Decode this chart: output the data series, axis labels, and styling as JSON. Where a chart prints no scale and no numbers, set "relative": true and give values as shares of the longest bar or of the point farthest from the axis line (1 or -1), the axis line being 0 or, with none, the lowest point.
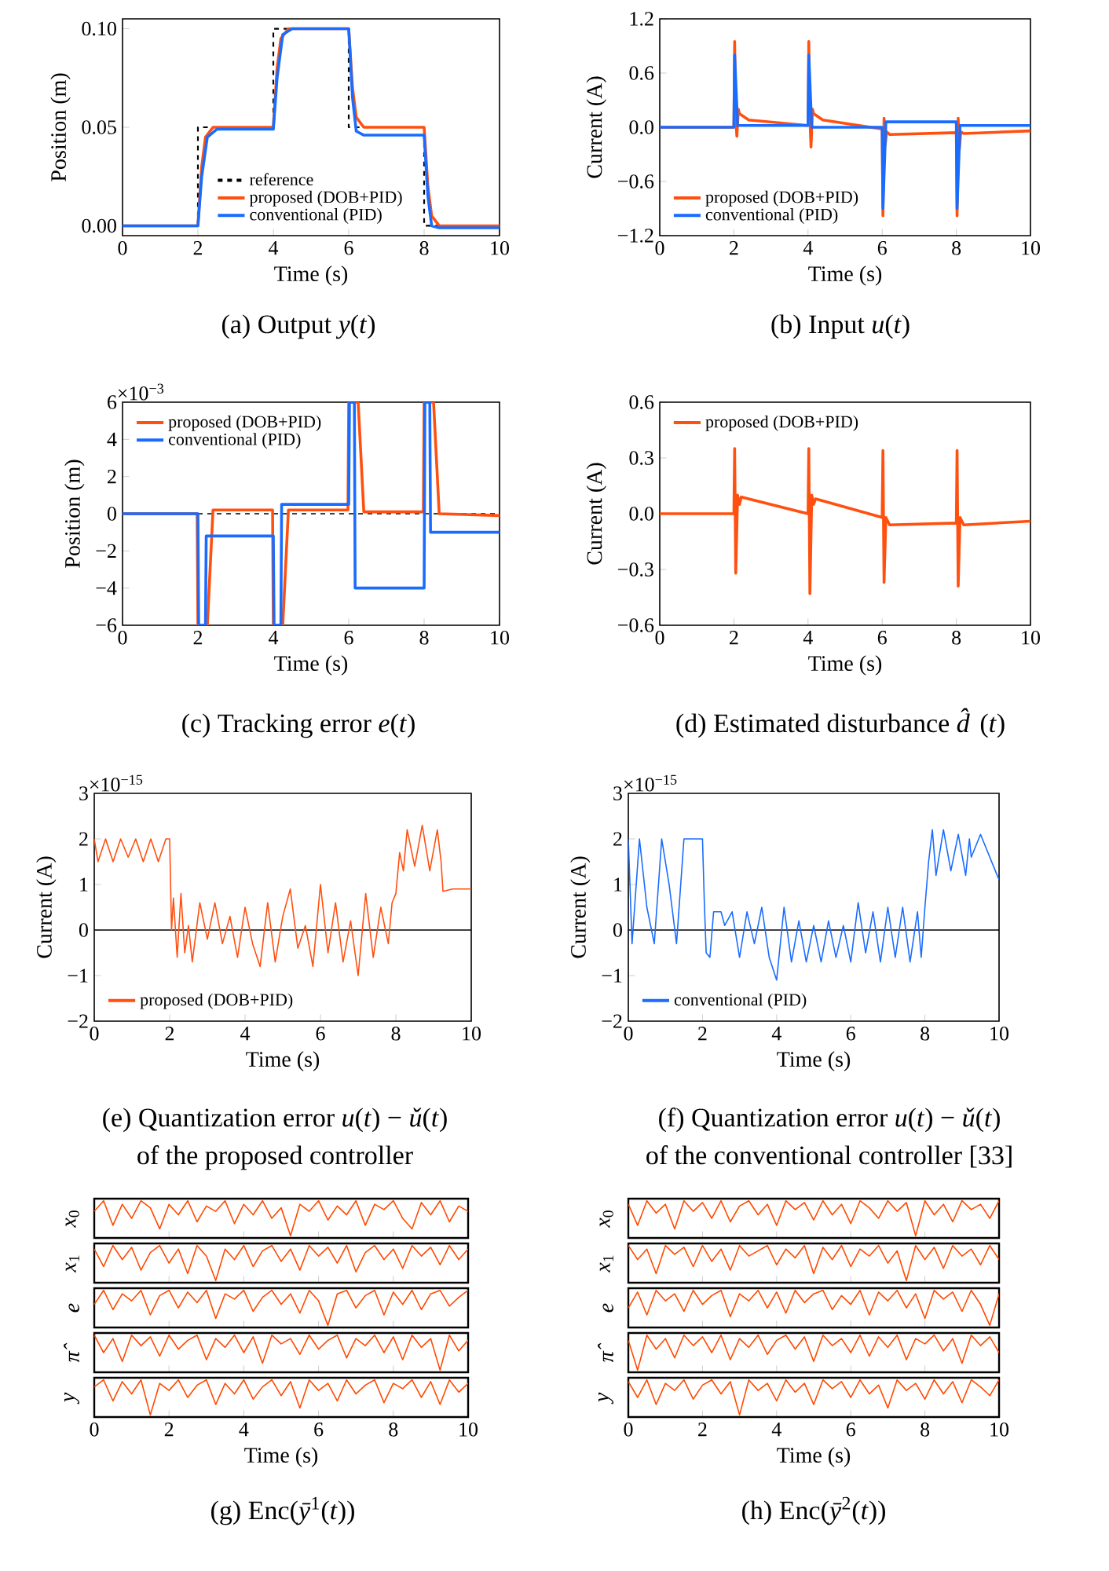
{
  "chart_data": [
    {
      "type": "line",
      "title": "(a) Output *y*(*t*)",
      "xlabel": "Time (s)",
      "ylabel": "Position (m)",
      "xlim": [
        0,
        10
      ],
      "ylim": [
        -0.005,
        0.105
      ],
      "xticks": [
        0,
        2,
        4,
        6,
        8,
        10
      ],
      "yticks": [
        {
          "value": 0,
          "label": "0.00"
        },
        {
          "value": 0.05,
          "label": "0.05"
        },
        {
          "value": 0.1,
          "label": "0.10"
        }
      ],
      "legend": "bottom",
      "series": [
        {
          "name": "reference",
          "color": "#000000",
          "line_style": "dashed",
          "x": [
            0,
            2,
            2,
            4,
            4,
            6,
            6,
            8,
            8,
            10
          ],
          "values": [
            0,
            0,
            0.05,
            0.05,
            0.1,
            0.1,
            0.05,
            0.05,
            0,
            0
          ]
        },
        {
          "name": "proposed (DOB+PID)",
          "color": "#ff5010",
          "x": [
            0,
            2,
            2.1,
            2.2,
            2.4,
            4,
            4.1,
            4.2,
            4.4,
            6,
            6.1,
            6.2,
            6.4,
            8,
            8.1,
            8.2,
            8.4,
            10
          ],
          "values": [
            0,
            0,
            0.03,
            0.045,
            0.05,
            0.05,
            0.08,
            0.095,
            0.1,
            0.1,
            0.07,
            0.055,
            0.05,
            0.05,
            0.02,
            0.005,
            0,
            0
          ]
        },
        {
          "name": "conventional (PID)",
          "color": "#1a6cff",
          "x": [
            0,
            2,
            2.1,
            2.25,
            2.5,
            4,
            4.1,
            4.25,
            4.5,
            6,
            6.1,
            6.2,
            6.4,
            8,
            8.1,
            8.2,
            8.4,
            10
          ],
          "values": [
            0,
            0,
            0.025,
            0.045,
            0.049,
            0.049,
            0.075,
            0.097,
            0.1,
            0.1,
            0.065,
            0.048,
            0.046,
            0.046,
            0.015,
            0.0,
            -0.001,
            -0.001
          ]
        }
      ]
    },
    {
      "type": "line",
      "title": "(b) Input *u*(*t*)",
      "xlabel": "Time (s)",
      "ylabel": "Current (A)",
      "xlim": [
        0,
        10
      ],
      "ylim": [
        -1.2,
        1.2
      ],
      "xticks": [
        0,
        2,
        4,
        6,
        8,
        10
      ],
      "yticks": [
        {
          "value": -1.2,
          "label": "−1.2"
        },
        {
          "value": -0.6,
          "label": "−0.6"
        },
        {
          "value": 0,
          "label": "0.0"
        },
        {
          "value": 0.6,
          "label": "0.6"
        },
        {
          "value": 1.2,
          "label": "1.2"
        }
      ],
      "legend": "bottom left",
      "series": [
        {
          "name": "proposed (DOB+PID)",
          "color": "#ff5010",
          "x": [
            0,
            2,
            2.02,
            2.05,
            2.08,
            2.12,
            2.15,
            2.4,
            4,
            4.02,
            4.05,
            4.08,
            4.12,
            4.15,
            4.4,
            6,
            6.02,
            6.05,
            6.08,
            6.12,
            6.2,
            8,
            8.02,
            8.05,
            8.08,
            8.12,
            8.2,
            10
          ],
          "values": [
            0,
            0,
            0.95,
            0.1,
            -0.1,
            0.2,
            0.15,
            0.08,
            0.02,
            0.95,
            0.1,
            -0.22,
            0.2,
            0.15,
            0.08,
            -0.02,
            -0.98,
            0.1,
            -0.2,
            -0.05,
            -0.08,
            -0.06,
            -0.98,
            0.1,
            -0.25,
            -0.05,
            -0.07,
            -0.04
          ]
        },
        {
          "name": "conventional (PID)",
          "color": "#1a6cff",
          "x": [
            0,
            2,
            2.02,
            2.1,
            4,
            4.02,
            4.1,
            6,
            6.02,
            6.1,
            8,
            8.02,
            8.1,
            10
          ],
          "values": [
            0,
            0,
            0.8,
            0.02,
            0.02,
            0.8,
            0.0,
            0.0,
            -0.9,
            0.06,
            0.06,
            -0.9,
            0.02,
            0.02
          ]
        }
      ]
    },
    {
      "type": "line",
      "title": "(c) Tracking error *e*(*t*)",
      "annotations": [
        "×10$^{−3}$"
      ],
      "xlabel": "Time (s)",
      "ylabel": "Position (m)",
      "xlim": [
        0,
        10
      ],
      "ylim": [
        -6,
        6
      ],
      "xticks": [
        0,
        2,
        4,
        6,
        8,
        10
      ],
      "yticks": [
        {
          "value": -6,
          "label": "−6"
        },
        {
          "value": -4,
          "label": "−4"
        },
        {
          "value": -2,
          "label": "−2"
        },
        0,
        2,
        4,
        6
      ],
      "legend": "top left",
      "ref_lines": [
        {
          "axis": "y",
          "value": 0,
          "color": "#000000",
          "line_style": "dashed"
        }
      ],
      "series": [
        {
          "name": "proposed (DOB+PID)",
          "color": "#ff5010",
          "x": [
            0,
            1.98,
            2.0,
            2.25,
            2.4,
            3.98,
            4.0,
            4.25,
            4.4,
            5.98,
            6.0,
            6.25,
            6.4,
            7.98,
            8.0,
            8.25,
            8.4,
            10
          ],
          "values": [
            0,
            0,
            -6,
            -6,
            0.2,
            0.2,
            -6,
            -6,
            0.2,
            0.2,
            6,
            6,
            0.1,
            0.1,
            6,
            6,
            0,
            -0.1
          ]
        },
        {
          "name": "conventional (PID)",
          "color": "#1a6cff",
          "x": [
            0,
            2.0,
            2.02,
            2.2,
            2.22,
            4.0,
            4.02,
            4.2,
            4.22,
            6.0,
            6.02,
            6.15,
            6.17,
            8.0,
            8.02,
            8.15,
            8.17,
            10
          ],
          "values": [
            0,
            0,
            -6,
            -6,
            -1.2,
            -1.2,
            -6,
            -6,
            0.5,
            0.5,
            6,
            6,
            -4,
            -4,
            6,
            6,
            -1,
            -1
          ]
        }
      ]
    },
    {
      "type": "line",
      "title": "(d) Estimated disturbance *d̂*(*t*)",
      "xlabel": "Time (s)",
      "ylabel": "Current (A)",
      "xlim": [
        0,
        10
      ],
      "ylim": [
        -0.6,
        0.6
      ],
      "xticks": [
        0,
        2,
        4,
        6,
        8,
        10
      ],
      "yticks": [
        {
          "value": -0.6,
          "label": "−0.6"
        },
        {
          "value": -0.3,
          "label": "−0.3"
        },
        {
          "value": 0,
          "label": "0.0"
        },
        {
          "value": 0.3,
          "label": "0.3"
        },
        {
          "value": 0.6,
          "label": "0.6"
        }
      ],
      "legend": "top left",
      "series": [
        {
          "name": "proposed (DOB+PID)",
          "color": "#ff5010",
          "x": [
            0,
            2,
            2.02,
            2.05,
            2.1,
            2.15,
            2.2,
            4,
            4.02,
            4.05,
            4.1,
            4.15,
            4.2,
            6,
            6.02,
            6.05,
            6.1,
            6.2,
            8,
            8.02,
            8.05,
            8.1,
            8.2,
            10
          ],
          "values": [
            0,
            0,
            0.35,
            -0.32,
            0.1,
            0.05,
            0.09,
            0.0,
            0.35,
            -0.43,
            0.1,
            0.05,
            0.08,
            -0.02,
            0.34,
            -0.37,
            -0.02,
            -0.06,
            -0.05,
            0.34,
            -0.39,
            -0.02,
            -0.06,
            -0.04
          ]
        }
      ]
    },
    {
      "type": "line",
      "title": "(e) Quantization error *u*(*t*) − *ǔ*(*t*)",
      "subtitle": "of the proposed controller",
      "annotations": [
        "×10$^{−15}$"
      ],
      "xlabel": "Time (s)",
      "ylabel": "Current (A)",
      "xlim": [
        0,
        10
      ],
      "ylim": [
        -2,
        3
      ],
      "xticks": [
        0,
        2,
        4,
        6,
        8,
        10
      ],
      "yticks": [
        {
          "value": -2,
          "label": "−2"
        },
        {
          "value": -1,
          "label": "−1"
        },
        0,
        1,
        2,
        3
      ],
      "legend": "bottom left",
      "ref_lines": [
        {
          "axis": "y",
          "value": 0,
          "color": "#000000",
          "line_style": "solid"
        }
      ],
      "series": [
        {
          "name": "proposed (DOB+PID)",
          "color": "#ff5010",
          "x": [
            0,
            0.1,
            0.3,
            0.5,
            0.7,
            0.9,
            1.1,
            1.3,
            1.5,
            1.7,
            1.9,
            2.0,
            2.05,
            2.1,
            2.2,
            2.3,
            2.4,
            2.5,
            2.6,
            2.8,
            3.0,
            3.2,
            3.4,
            3.6,
            3.8,
            4.0,
            4.2,
            4.4,
            4.6,
            4.8,
            5.0,
            5.2,
            5.4,
            5.6,
            5.8,
            6.0,
            6.2,
            6.4,
            6.6,
            6.8,
            7.0,
            7.2,
            7.4,
            7.6,
            7.8,
            7.9,
            8.0,
            8.1,
            8.2,
            8.3,
            8.5,
            8.7,
            8.9,
            9.1,
            9.2,
            9.25,
            9.5,
            10
          ],
          "values": [
            2.0,
            1.5,
            2.0,
            1.5,
            2.0,
            1.6,
            2.0,
            1.5,
            2.0,
            1.5,
            2.0,
            2.0,
            0.0,
            0.7,
            -0.6,
            0.8,
            -0.5,
            0.1,
            -0.7,
            0.6,
            -0.2,
            0.6,
            -0.3,
            0.3,
            -0.6,
            0.5,
            -0.3,
            -0.8,
            0.6,
            -0.7,
            0.3,
            0.9,
            -0.4,
            0.1,
            -0.8,
            1.0,
            -0.5,
            0.6,
            -0.7,
            0.2,
            -1.0,
            0.8,
            -0.6,
            0.5,
            -0.3,
            0.6,
            0.8,
            1.7,
            1.3,
            2.2,
            1.4,
            2.3,
            1.3,
            2.2,
            1.5,
            0.85,
            0.9,
            0.9
          ]
        }
      ]
    },
    {
      "type": "line",
      "title": "(f) Quantization error *u*(*t*) − *ǔ*(*t*)",
      "subtitle": "of the conventional controller [33]",
      "annotations": [
        "×10$^{−15}$"
      ],
      "xlabel": "Time (s)",
      "ylabel": "Current (A)",
      "xlim": [
        0,
        10
      ],
      "ylim": [
        -2,
        3
      ],
      "xticks": [
        0,
        2,
        4,
        6,
        8,
        10
      ],
      "yticks": [
        {
          "value": -2,
          "label": "−2"
        },
        {
          "value": -1,
          "label": "−1"
        },
        0,
        1,
        2,
        3
      ],
      "legend": "bottom left",
      "ref_lines": [
        {
          "axis": "y",
          "value": 0,
          "color": "#000000",
          "line_style": "solid"
        }
      ],
      "series": [
        {
          "name": "conventional (PID)",
          "color": "#1a6cff",
          "x": [
            0,
            0.1,
            0.3,
            0.5,
            0.7,
            0.9,
            1.1,
            1.3,
            1.5,
            1.7,
            1.9,
            2.0,
            2.05,
            2.1,
            2.2,
            2.3,
            2.4,
            2.5,
            2.6,
            2.8,
            3.0,
            3.2,
            3.4,
            3.6,
            3.8,
            4.0,
            4.2,
            4.4,
            4.6,
            4.8,
            5.0,
            5.2,
            5.4,
            5.6,
            5.8,
            6.0,
            6.2,
            6.4,
            6.6,
            6.8,
            7.0,
            7.2,
            7.4,
            7.6,
            7.8,
            7.9,
            8.0,
            8.1,
            8.2,
            8.3,
            8.5,
            8.7,
            8.9,
            9.1,
            9.2,
            9.25,
            9.5,
            10
          ],
          "values": [
            2.0,
            -0.3,
            2.0,
            0.5,
            -0.3,
            2.0,
            1.0,
            -0.3,
            2.0,
            2.0,
            2.0,
            2.0,
            0.6,
            -0.5,
            -0.6,
            0.4,
            0.4,
            0.4,
            0.1,
            0.4,
            -0.6,
            0.4,
            -0.3,
            0.5,
            -0.6,
            -1.1,
            0.5,
            -0.7,
            0.2,
            -0.7,
            0.1,
            -0.7,
            0.2,
            -0.6,
            0.1,
            -0.7,
            0.6,
            -0.5,
            0.4,
            -0.7,
            0.5,
            -0.6,
            0.5,
            -0.7,
            0.4,
            -0.6,
            0.5,
            1.5,
            2.2,
            1.2,
            2.2,
            1.3,
            2.1,
            1.2,
            2.0,
            1.6,
            2.1,
            1.1
          ]
        }
      ]
    },
    {
      "type": "line",
      "relative": true,
      "ylabel": "*x*$_{0}$",
      "tick_labels": false,
      "xlim": [
        0,
        10
      ],
      "xticks": [
        0,
        2,
        4,
        6,
        8,
        10
      ],
      "x": [
        0,
        0.25,
        0.5,
        0.75,
        1,
        1.25,
        1.5,
        1.75,
        2,
        2.25,
        2.5,
        2.75,
        3,
        3.25,
        3.5,
        3.75,
        4,
        4.25,
        4.5,
        4.75,
        5,
        5.25,
        5.5,
        5.75,
        6,
        6.25,
        6.5,
        6.75,
        7,
        7.25,
        7.5,
        7.75,
        8,
        8.25,
        8.5,
        8.75,
        9,
        9.25,
        9.5,
        9.75,
        10
      ],
      "series": [
        {
          "color": "#ff4a00",
          "values": [
            0.7,
            1,
            0.3,
            0.9,
            0.5,
            1,
            0.8,
            0.2,
            0.9,
            0.6,
            1,
            0.4,
            0.85,
            0.7,
            1,
            0.35,
            0.9,
            0.6,
            1,
            0.5,
            0.8,
            0,
            0.9,
            0.7,
            1,
            0.45,
            0.85,
            0.6,
            1,
            0.3,
            0.9,
            0.75,
            1,
            0.5,
            0.2,
            0.95,
            0.6,
            1,
            0.4,
            0.85,
            0.7
          ]
        }
      ]
    },
    {
      "type": "line",
      "relative": true,
      "ylabel": "*x*$_{1}$",
      "tick_labels": false,
      "xlim": [
        0,
        10
      ],
      "xticks": [
        0,
        2,
        4,
        6,
        8,
        10
      ],
      "x": [
        0,
        0.25,
        0.5,
        0.75,
        1,
        1.25,
        1.5,
        1.75,
        2,
        2.25,
        2.5,
        2.75,
        3,
        3.25,
        3.5,
        3.75,
        4,
        4.25,
        4.5,
        4.75,
        5,
        5.25,
        5.5,
        5.75,
        6,
        6.25,
        6.5,
        6.75,
        7,
        7.25,
        7.5,
        7.75,
        8,
        8.25,
        8.5,
        8.75,
        9,
        9.25,
        9.5,
        9.75,
        10
      ],
      "series": [
        {
          "color": "#ff4a00",
          "values": [
            0.9,
            0.4,
            1,
            0.6,
            0.95,
            0.3,
            0.8,
            1,
            0.5,
            0.9,
            0.2,
            1,
            0.7,
            0,
            0.9,
            0.6,
            1,
            0.4,
            0.85,
            1,
            0.55,
            0.9,
            0.3,
            1,
            0.7,
            0.95,
            0.5,
            1,
            0.25,
            0.8,
            1,
            0.6,
            0.9,
            0.35,
            1,
            0.7,
            0.95,
            0.45,
            1,
            0.6,
            0.9
          ]
        }
      ]
    },
    {
      "type": "line",
      "relative": true,
      "ylabel": "*e*",
      "tick_labels": false,
      "xlim": [
        0,
        10
      ],
      "xticks": [
        0,
        2,
        4,
        6,
        8,
        10
      ],
      "x": [
        0,
        0.25,
        0.5,
        0.75,
        1,
        1.25,
        1.5,
        1.75,
        2,
        2.25,
        2.5,
        2.75,
        3,
        3.25,
        3.5,
        3.75,
        4,
        4.25,
        4.5,
        4.75,
        5,
        5.25,
        5.5,
        5.75,
        6,
        6.25,
        6.5,
        6.75,
        7,
        7.25,
        7.5,
        7.75,
        8,
        8.25,
        8.5,
        8.75,
        9,
        9.25,
        9.5,
        9.75,
        10
      ],
      "series": [
        {
          "color": "#ff4a00",
          "values": [
            0.6,
            1,
            0.45,
            0.9,
            0.7,
            1,
            0.3,
            0.85,
            1,
            0.5,
            0.95,
            0.65,
            1,
            0.2,
            0.9,
            0.75,
            1,
            0.4,
            0.8,
            1,
            0.6,
            0.9,
            0.35,
            1,
            0.7,
            0,
            0.9,
            1,
            0.5,
            0.85,
            1,
            0.3,
            0.95,
            0.6,
            1,
            0.45,
            0.9,
            1,
            0.55,
            0.8,
            1
          ]
        }
      ]
    },
    {
      "type": "line",
      "relative": true,
      "ylabel": "*π̂*",
      "tick_labels": false,
      "xlim": [
        0,
        10
      ],
      "xticks": [
        0,
        2,
        4,
        6,
        8,
        10
      ],
      "x": [
        0,
        0.25,
        0.5,
        0.75,
        1,
        1.25,
        1.5,
        1.75,
        2,
        2.25,
        2.5,
        2.75,
        3,
        3.25,
        3.5,
        3.75,
        4,
        4.25,
        4.5,
        4.75,
        5,
        5.25,
        5.5,
        5.75,
        6,
        6.25,
        6.5,
        6.75,
        7,
        7.25,
        7.5,
        7.75,
        8,
        8.25,
        8.5,
        8.75,
        9,
        9.25,
        9.5,
        9.75,
        10
      ],
      "series": [
        {
          "color": "#ff4a00",
          "values": [
            1,
            0.5,
            0.9,
            0.25,
            1,
            0.7,
            0.95,
            0.4,
            1,
            0.6,
            0.85,
            1,
            0.3,
            0.9,
            0.65,
            1,
            0.5,
            0.95,
            0.2,
            1,
            0.75,
            0.9,
            0.45,
            1,
            0.6,
            0.85,
            1,
            0.35,
            0.9,
            0.7,
            1,
            0.5,
            0.95,
            0.3,
            1,
            0.65,
            0.9,
            0,
            1,
            0.55,
            0.85
          ]
        }
      ]
    },
    {
      "type": "line",
      "relative": true,
      "ylabel": "*y*",
      "tick_labels": "x",
      "title": "(g) Enc(*ȳ*$^{1}$(*t*))",
      "xlabel": "Time (s)",
      "xlim": [
        0,
        10
      ],
      "xticks": [
        0,
        2,
        4,
        6,
        8,
        10
      ],
      "x": [
        0,
        0.25,
        0.5,
        0.75,
        1,
        1.25,
        1.5,
        1.75,
        2,
        2.25,
        2.5,
        2.75,
        3,
        3.25,
        3.5,
        3.75,
        4,
        4.25,
        4.5,
        4.75,
        5,
        5.25,
        5.5,
        5.75,
        6,
        6.25,
        6.5,
        6.75,
        7,
        7.25,
        7.5,
        7.75,
        8,
        8.25,
        8.5,
        8.75,
        9,
        9.25,
        9.5,
        9.75,
        10
      ],
      "series": [
        {
          "color": "#ff4a00",
          "values": [
            0.8,
            1,
            0.4,
            0.95,
            0.6,
            1,
            0,
            0.9,
            0.7,
            1,
            0.5,
            0.85,
            1,
            0.3,
            0.9,
            0.6,
            1,
            0.45,
            0.8,
            1,
            0.55,
            0.95,
            0.2,
            1,
            0.7,
            0.9,
            0.4,
            1,
            0.6,
            0.85,
            1,
            0.35,
            0.9,
            0.75,
            1,
            0.5,
            0.95,
            0.3,
            1,
            0.65,
            0.9
          ]
        }
      ]
    },
    {
      "type": "line",
      "relative": true,
      "ylabel": "*x*$_{0}$",
      "tick_labels": false,
      "xlim": [
        0,
        10
      ],
      "xticks": [
        0,
        2,
        4,
        6,
        8,
        10
      ],
      "x": [
        0,
        0.25,
        0.5,
        0.75,
        1,
        1.25,
        1.5,
        1.75,
        2,
        2.25,
        2.5,
        2.75,
        3,
        3.25,
        3.5,
        3.75,
        4,
        4.25,
        4.5,
        4.75,
        5,
        5.25,
        5.5,
        5.75,
        6,
        6.25,
        6.5,
        6.75,
        7,
        7.25,
        7.5,
        7.75,
        8,
        8.25,
        8.5,
        8.75,
        9,
        9.25,
        9.5,
        9.75,
        10
      ],
      "series": [
        {
          "color": "#ff4a00",
          "values": [
            0.9,
            0.3,
            1,
            0.65,
            0.9,
            0.2,
            1,
            0.7,
            0.95,
            0.5,
            1,
            0.4,
            0.85,
            1,
            0.6,
            0.9,
            0.3,
            1,
            0.75,
            0.95,
            0.45,
            1,
            0.6,
            0.9,
            0.35,
            1,
            0.8,
            0.5,
            1,
            0.7,
            0.95,
            0,
            1,
            0.6,
            0.9,
            0.4,
            1,
            0.75,
            0.9,
            0.5,
            1
          ]
        }
      ]
    },
    {
      "type": "line",
      "relative": true,
      "ylabel": "*x*$_{1}$",
      "tick_labels": false,
      "xlim": [
        0,
        10
      ],
      "xticks": [
        0,
        2,
        4,
        6,
        8,
        10
      ],
      "x": [
        0,
        0.25,
        0.5,
        0.75,
        1,
        1.25,
        1.5,
        1.75,
        2,
        2.25,
        2.5,
        2.75,
        3,
        3.25,
        3.5,
        3.75,
        4,
        4.25,
        4.5,
        4.75,
        5,
        5.25,
        5.5,
        5.75,
        6,
        6.25,
        6.5,
        6.75,
        7,
        7.25,
        7.5,
        7.75,
        8,
        8.25,
        8.5,
        8.75,
        9,
        9.25,
        9.5,
        9.75,
        10
      ],
      "series": [
        {
          "color": "#ff4a00",
          "values": [
            1,
            0.6,
            0.9,
            0.2,
            1,
            0.75,
            0.95,
            0.4,
            1,
            0.55,
            0.9,
            0.3,
            1,
            0.7,
            0.85,
            1,
            0.45,
            0.9,
            0.65,
            1,
            0.2,
            0.95,
            0.6,
            1,
            0.4,
            0.9,
            0.7,
            1,
            0.5,
            0.85,
            0,
            1,
            0.6,
            0.95,
            0.35,
            1,
            0.7,
            0.9,
            0.45,
            1,
            0.6
          ]
        }
      ]
    },
    {
      "type": "line",
      "relative": true,
      "ylabel": "*e*",
      "tick_labels": false,
      "xlim": [
        0,
        10
      ],
      "xticks": [
        0,
        2,
        4,
        6,
        8,
        10
      ],
      "x": [
        0,
        0.25,
        0.5,
        0.75,
        1,
        1.25,
        1.5,
        1.75,
        2,
        2.25,
        2.5,
        2.75,
        3,
        3.25,
        3.5,
        3.75,
        4,
        4.25,
        4.5,
        4.75,
        5,
        5.25,
        5.5,
        5.75,
        6,
        6.25,
        6.5,
        6.75,
        7,
        7.25,
        7.5,
        7.75,
        8,
        8.25,
        8.5,
        8.75,
        9,
        9.25,
        9.5,
        9.75,
        10
      ],
      "series": [
        {
          "color": "#ff4a00",
          "values": [
            0.5,
            0.95,
            0.3,
            1,
            0.7,
            0.9,
            0.4,
            1,
            0.6,
            0.85,
            1,
            0.25,
            0.9,
            0.7,
            1,
            0.5,
            0.95,
            0.35,
            1,
            0.65,
            0.9,
            1,
            0.45,
            0.85,
            0.6,
            1,
            0.3,
            0.95,
            0.7,
            1,
            0.5,
            0.9,
            0.2,
            1,
            0.75,
            0.95,
            0.4,
            1,
            0.6,
            0,
            0.9
          ]
        }
      ]
    },
    {
      "type": "line",
      "relative": true,
      "ylabel": "*π̂*",
      "tick_labels": false,
      "xlim": [
        0,
        10
      ],
      "xticks": [
        0,
        2,
        4,
        6,
        8,
        10
      ],
      "x": [
        0,
        0.25,
        0.5,
        0.75,
        1,
        1.25,
        1.5,
        1.75,
        2,
        2.25,
        2.5,
        2.75,
        3,
        3.25,
        3.5,
        3.75,
        4,
        4.25,
        4.5,
        4.75,
        5,
        5.25,
        5.5,
        5.75,
        6,
        6.25,
        6.5,
        6.75,
        7,
        7.25,
        7.5,
        7.75,
        8,
        8.25,
        8.5,
        8.75,
        9,
        9.25,
        9.5,
        9.75,
        10
      ],
      "series": [
        {
          "color": "#ff4a00",
          "values": [
            0.85,
            0,
            1,
            0.6,
            0.9,
            0.35,
            1,
            0.7,
            0.95,
            0.5,
            1,
            0.3,
            0.9,
            0.65,
            1,
            0.45,
            0.85,
            1,
            0.6,
            0.95,
            0.25,
            1,
            0.7,
            0.9,
            0.5,
            1,
            0.4,
            0.95,
            0.65,
            1,
            0.3,
            0.9,
            0.75,
            1,
            0.55,
            0.9,
            0.2,
            1,
            0.7,
            0.95,
            0.5
          ]
        }
      ]
    },
    {
      "type": "line",
      "relative": true,
      "ylabel": "*y*",
      "tick_labels": "x",
      "title": "(h) Enc(*ȳ*$^{2}$(*t*))",
      "xlabel": "Time (s)",
      "xlim": [
        0,
        10
      ],
      "xticks": [
        0,
        2,
        4,
        6,
        8,
        10
      ],
      "x": [
        0,
        0.25,
        0.5,
        0.75,
        1,
        1.25,
        1.5,
        1.75,
        2,
        2.25,
        2.5,
        2.75,
        3,
        3.25,
        3.5,
        3.75,
        4,
        4.25,
        4.5,
        4.75,
        5,
        5.25,
        5.5,
        5.75,
        6,
        6.25,
        6.5,
        6.75,
        7,
        7.25,
        7.5,
        7.75,
        8,
        8.25,
        8.5,
        8.75,
        9,
        9.25,
        9.5,
        9.75,
        10
      ],
      "series": [
        {
          "color": "#ff4a00",
          "values": [
            0.95,
            0.5,
            1,
            0.3,
            0.9,
            0.7,
            1,
            0.45,
            0.85,
            1,
            0.6,
            0.95,
            0,
            1,
            0.7,
            0.9,
            0.4,
            1,
            0.65,
            0.9,
            0.3,
            1,
            0.75,
            0.95,
            0.5,
            1,
            0.6,
            0.85,
            0.2,
            1,
            0.7,
            0.9,
            0.45,
            1,
            0.6,
            0.95,
            0.35,
            1,
            0.8,
            0.55,
            1
          ]
        }
      ]
    }
  ]
}
